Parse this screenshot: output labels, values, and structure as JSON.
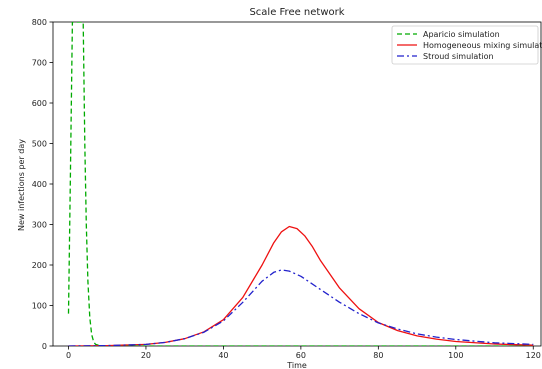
{
  "chart_data": {
    "type": "line",
    "title": "Scale Free network",
    "xlabel": "Time",
    "ylabel": "New infections per day",
    "xlim": [
      -4,
      122
    ],
    "ylim": [
      0,
      800
    ],
    "xticks": [
      0,
      20,
      40,
      60,
      80,
      100,
      120
    ],
    "yticks": [
      0,
      100,
      200,
      300,
      400,
      500,
      600,
      700,
      800
    ],
    "grid": false,
    "legend_position": "top-right",
    "series": [
      {
        "name": "Aparicio simulation",
        "color": "#00aa00",
        "style": "dashed",
        "x": [
          0,
          0.5,
          1,
          1.3,
          3.8,
          4.2,
          4.6,
          5,
          5.5,
          6,
          6.5,
          7,
          8,
          10,
          20,
          40,
          60,
          80,
          100,
          120
        ],
        "y": [
          80,
          420,
          800,
          800,
          800,
          500,
          300,
          160,
          70,
          28,
          10,
          4,
          1,
          0,
          0,
          0,
          0,
          0,
          0,
          0
        ]
      },
      {
        "name": "Homogeneous mixing simulation",
        "color": "#ee1111",
        "style": "solid",
        "x": [
          0,
          10,
          20,
          25,
          30,
          35,
          40,
          45,
          50,
          53,
          55,
          57,
          59,
          61,
          63,
          65,
          70,
          75,
          80,
          85,
          90,
          95,
          100,
          110,
          120
        ],
        "y": [
          0,
          1,
          4,
          9,
          18,
          35,
          65,
          120,
          200,
          255,
          282,
          295,
          290,
          272,
          245,
          212,
          143,
          92,
          58,
          38,
          25,
          17,
          11,
          5,
          2
        ]
      },
      {
        "name": "Stroud simulation",
        "color": "#2222cc",
        "style": "dashdot",
        "x": [
          0,
          10,
          20,
          25,
          30,
          35,
          40,
          45,
          50,
          53,
          55,
          57,
          60,
          65,
          70,
          75,
          80,
          85,
          90,
          95,
          100,
          110,
          120
        ],
        "y": [
          0,
          1,
          4,
          9,
          18,
          34,
          62,
          108,
          160,
          182,
          188,
          185,
          172,
          140,
          108,
          80,
          57,
          42,
          30,
          22,
          16,
          8,
          4
        ]
      }
    ]
  }
}
